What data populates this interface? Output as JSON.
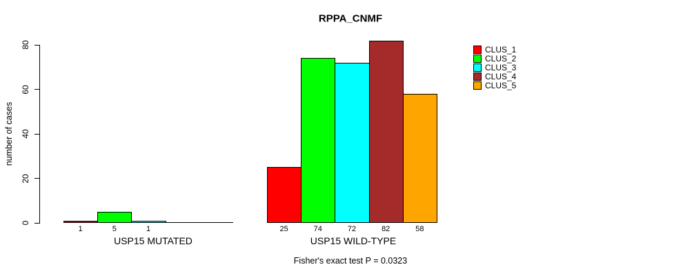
{
  "chart_data": {
    "type": "bar",
    "title": "RPPA_CNMF",
    "ylabel": "number of cases",
    "ylim": [
      0,
      80
    ],
    "yticks": [
      0,
      20,
      40,
      60,
      80
    ],
    "series_names": [
      "CLUS_1",
      "CLUS_2",
      "CLUS_3",
      "CLUS_4",
      "CLUS_5"
    ],
    "colors": [
      "#FF0000",
      "#00FF00",
      "#00FFFF",
      "#A52A2A",
      "#FFA500"
    ],
    "groups": [
      {
        "label": "USP15 MUTATED",
        "values": [
          1,
          5,
          1,
          0,
          0
        ]
      },
      {
        "label": "USP15 WILD-TYPE",
        "values": [
          25,
          74,
          72,
          82,
          58
        ]
      }
    ],
    "bar_value_labels": true,
    "legend_position": "right",
    "annotation": "Fisher's exact test P = 0.0323"
  }
}
